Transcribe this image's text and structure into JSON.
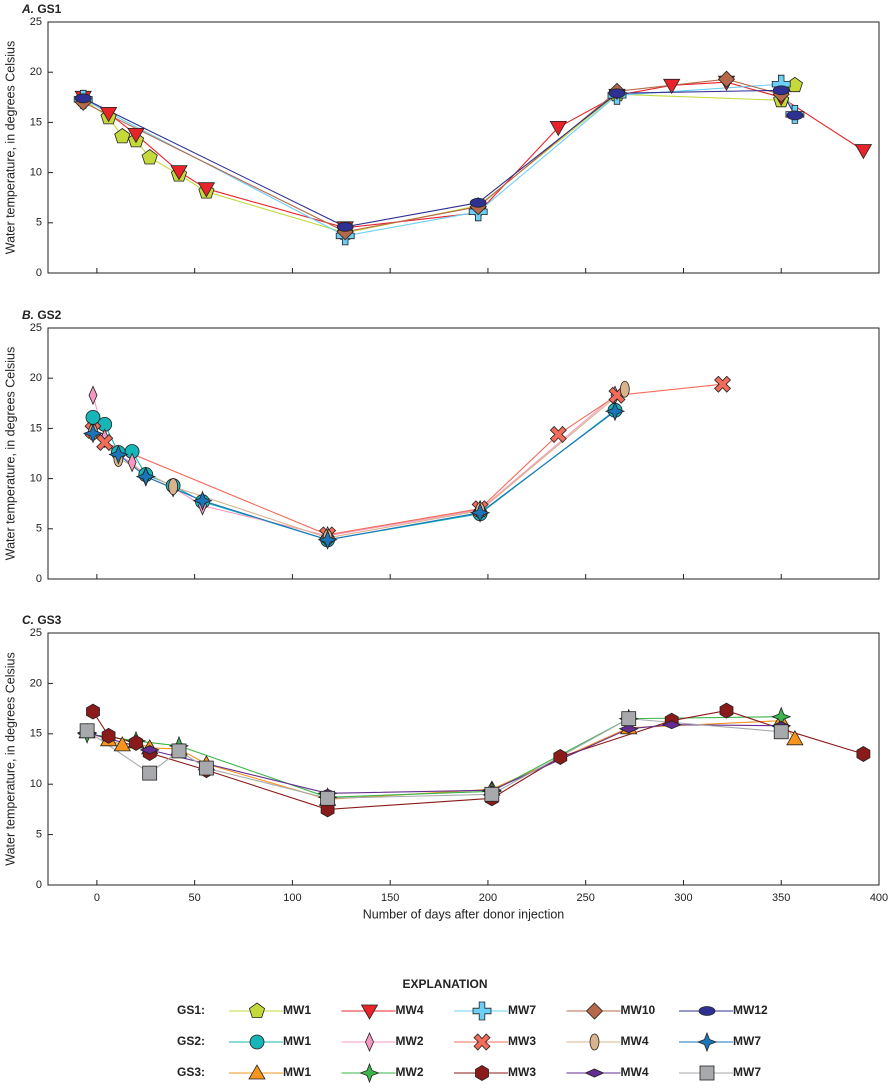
{
  "legend_title": "EXPLANATION",
  "chart_data": [
    {
      "type": "line",
      "label": "A.",
      "title": "GS1",
      "legend_label": "GS1:",
      "y_label": "Water temperature, in degrees Celsius",
      "xlim": [
        -25,
        400
      ],
      "xticks": [
        0,
        50,
        100,
        150,
        200,
        250,
        300,
        350,
        400
      ],
      "show_xtick_labels": false,
      "ylim": [
        0,
        25
      ],
      "yticks": [
        0,
        5,
        10,
        15,
        20,
        25
      ],
      "series": [
        {
          "name": "MW1",
          "color": "#c6d93b",
          "marker": "pentagon",
          "x": [
            -7,
            6,
            13,
            20,
            27,
            42,
            56,
            127,
            195,
            266,
            350,
            357
          ],
          "values": [
            17.3,
            15.5,
            13.6,
            13.2,
            11.5,
            9.8,
            8.1,
            4.0,
            6.7,
            17.8,
            17.2,
            18.7
          ]
        },
        {
          "name": "MW4",
          "color": "#e8242a",
          "marker": "triangle-down",
          "x": [
            -7,
            6,
            20,
            42,
            56,
            127,
            195,
            236,
            266,
            294,
            322,
            350,
            392
          ],
          "values": [
            17.5,
            15.9,
            13.8,
            10.1,
            8.4,
            4.5,
            6.0,
            14.5,
            17.7,
            18.7,
            19.0,
            17.5,
            12.2
          ]
        },
        {
          "name": "MW7",
          "color": "#6ccff6",
          "marker": "cross",
          "x": [
            -7,
            127,
            195,
            266,
            350,
            357
          ],
          "values": [
            17.3,
            3.7,
            6.1,
            17.7,
            18.8,
            15.8
          ]
        },
        {
          "name": "MW10",
          "color": "#b5694a",
          "marker": "diamond",
          "x": [
            -7,
            127,
            195,
            266,
            322,
            350
          ],
          "values": [
            17.0,
            4.1,
            6.6,
            18.1,
            19.3,
            17.8
          ]
        },
        {
          "name": "MW12",
          "color": "#2e3192",
          "marker": "ellipse-wide",
          "x": [
            -7,
            127,
            195,
            266,
            350,
            357
          ],
          "values": [
            17.4,
            4.6,
            7.0,
            17.9,
            18.2,
            15.7
          ]
        }
      ]
    },
    {
      "type": "line",
      "label": "B.",
      "title": "GS2",
      "legend_label": "GS2:",
      "y_label": "Water temperature, in degrees Celsius",
      "xlim": [
        -25,
        400
      ],
      "xticks": [
        0,
        50,
        100,
        150,
        200,
        250,
        300,
        350,
        400
      ],
      "show_xtick_labels": false,
      "ylim": [
        0,
        25
      ],
      "yticks": [
        0,
        5,
        10,
        15,
        20,
        25
      ],
      "series": [
        {
          "name": "MW1",
          "color": "#16b5b7",
          "marker": "circle",
          "x": [
            -2,
            4,
            11,
            18,
            25,
            39,
            54,
            118,
            196,
            265
          ],
          "values": [
            16.1,
            15.4,
            12.6,
            12.7,
            10.4,
            9.3,
            7.7,
            3.9,
            6.5,
            16.8
          ]
        },
        {
          "name": "MW2",
          "color": "#f49ac1",
          "marker": "thin-diamond",
          "x": [
            -2,
            4,
            11,
            18,
            25,
            39,
            54,
            118,
            196,
            265
          ],
          "values": [
            18.3,
            14.0,
            12.3,
            11.6,
            10.2,
            9.1,
            7.3,
            4.3,
            6.9,
            18.3
          ]
        },
        {
          "name": "MW3",
          "color": "#f26c5a",
          "marker": "x",
          "x": [
            -2,
            4,
            118,
            196,
            236,
            266,
            320
          ],
          "values": [
            14.8,
            13.6,
            4.4,
            7.0,
            14.4,
            18.3,
            19.4
          ]
        },
        {
          "name": "MW4",
          "color": "#d9b38c",
          "marker": "ellipse-tall",
          "x": [
            -2,
            11,
            39,
            118,
            196,
            270
          ],
          "values": [
            14.6,
            12.0,
            9.2,
            4.1,
            6.8,
            18.9
          ]
        },
        {
          "name": "MW7",
          "color": "#1b75bb",
          "marker": "star4",
          "x": [
            -2,
            11,
            25,
            54,
            118,
            196,
            265
          ],
          "values": [
            14.5,
            12.4,
            10.2,
            7.8,
            3.9,
            6.6,
            16.7
          ]
        }
      ]
    },
    {
      "type": "line",
      "label": "C.",
      "title": "GS3",
      "legend_label": "GS3:",
      "y_label": "Water temperature, in degrees Celsius",
      "x_label": "Number of days after donor injection",
      "xlim": [
        -25,
        400
      ],
      "xticks": [
        0,
        50,
        100,
        150,
        200,
        250,
        300,
        350,
        400
      ],
      "show_xtick_labels": true,
      "ylim": [
        0,
        25
      ],
      "yticks": [
        0,
        5,
        10,
        15,
        20,
        25
      ],
      "series": [
        {
          "name": "MW1",
          "color": "#f7941d",
          "marker": "triangle-up",
          "x": [
            -5,
            6,
            13,
            20,
            27,
            42,
            56,
            118,
            202,
            272,
            350,
            357
          ],
          "values": [
            15.2,
            14.4,
            13.9,
            14.2,
            13.6,
            13.5,
            12.0,
            8.5,
            9.5,
            15.6,
            16.3,
            14.5
          ]
        },
        {
          "name": "MW2",
          "color": "#39b54a",
          "marker": "star4",
          "x": [
            -5,
            20,
            42,
            118,
            202,
            272,
            350
          ],
          "values": [
            15.0,
            14.3,
            13.8,
            8.7,
            9.3,
            16.5,
            16.7
          ]
        },
        {
          "name": "MW3",
          "color": "#8b1a1a",
          "marker": "hexagon",
          "x": [
            -2,
            6,
            20,
            27,
            56,
            118,
            202,
            237,
            294,
            322,
            350,
            392
          ],
          "values": [
            17.2,
            14.8,
            14.1,
            13.1,
            11.4,
            7.5,
            8.6,
            12.7,
            16.3,
            17.3,
            15.5,
            13.0
          ]
        },
        {
          "name": "MW4",
          "color": "#662d91",
          "marker": "flat-diamond",
          "x": [
            -5,
            27,
            118,
            202,
            272,
            294,
            350
          ],
          "values": [
            15.1,
            13.4,
            9.1,
            9.4,
            15.5,
            15.9,
            15.8
          ]
        },
        {
          "name": "MW7",
          "color": "#a7a9ac",
          "marker": "square",
          "x": [
            -5,
            27,
            42,
            56,
            118,
            202,
            272,
            350
          ],
          "values": [
            15.3,
            11.1,
            13.3,
            11.6,
            8.6,
            9.0,
            16.5,
            15.2
          ]
        }
      ]
    }
  ]
}
